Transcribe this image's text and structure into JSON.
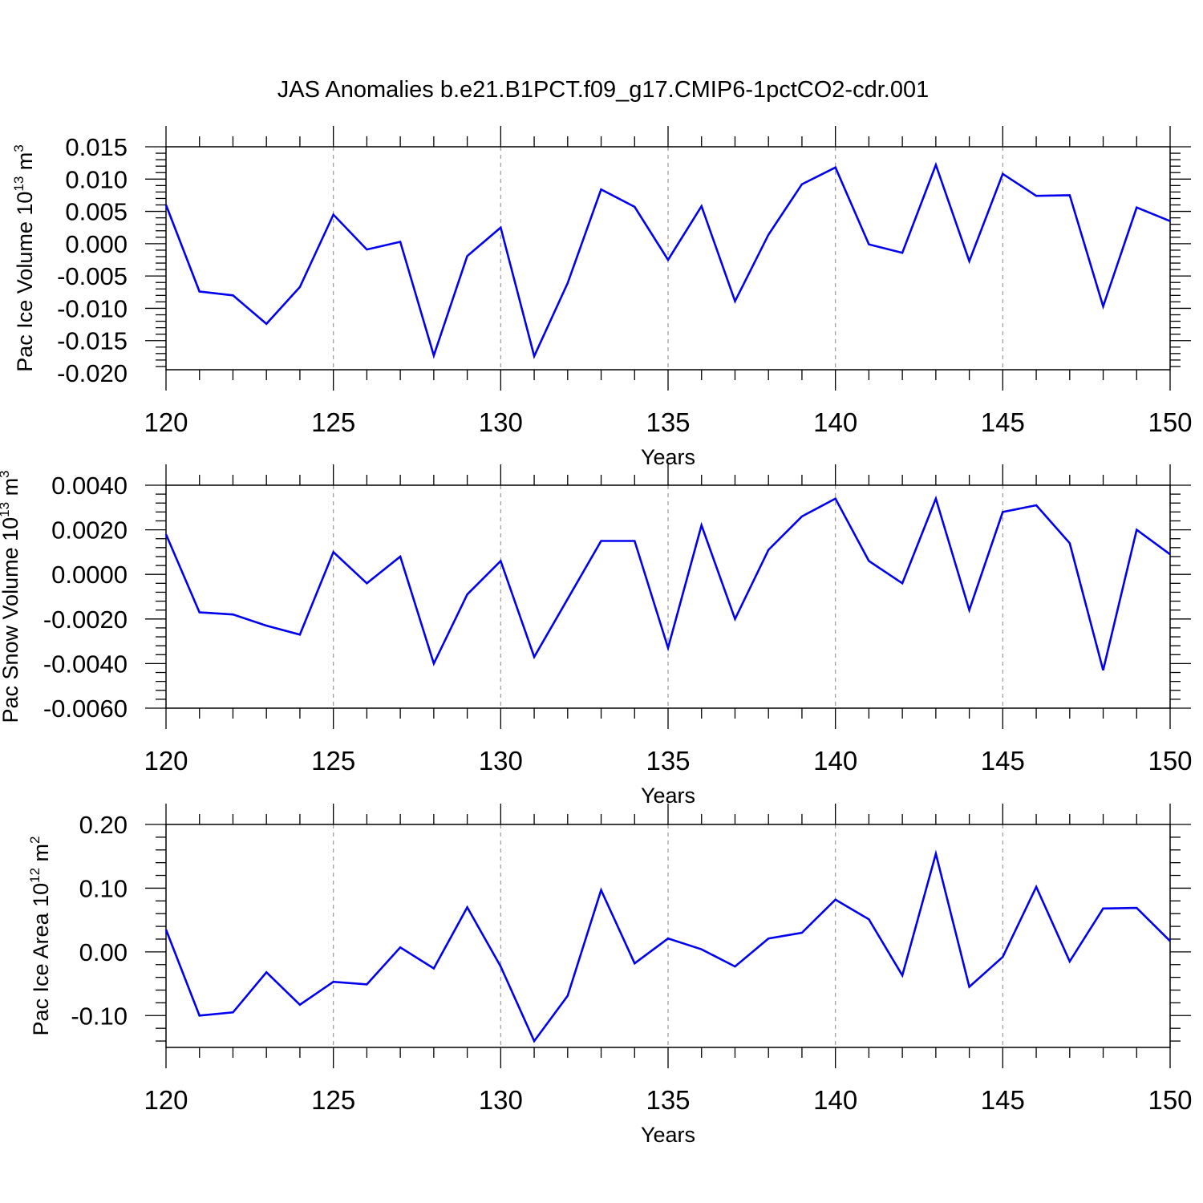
{
  "title": "JAS Anomalies b.e21.B1PCT.f09_g17.CMIP6-1pctCO2-cdr.001",
  "line_color": "#0000ee",
  "chart_data": [
    {
      "type": "line",
      "ylabel": {
        "text": "Pac Ice Volume 10",
        "exp": "13",
        "unit": " m",
        "unit_exp": "3"
      },
      "xlabel": "Years",
      "xlim": [
        120,
        150
      ],
      "ylim": [
        -0.0195,
        0.015
      ],
      "xticks": [
        120,
        125,
        130,
        135,
        140,
        145,
        150
      ],
      "xtick_labels": [
        "120",
        "125",
        "130",
        "135",
        "140",
        "145",
        "150"
      ],
      "yticks": [
        -0.02,
        -0.015,
        -0.01,
        -0.005,
        0.0,
        0.005,
        0.01,
        0.015
      ],
      "ytick_labels": [
        "-0.020",
        "-0.015",
        "-0.010",
        "-0.005",
        "0.000",
        "0.005",
        "0.010",
        "0.015"
      ],
      "grid_x": true,
      "x": [
        120,
        121,
        122,
        123,
        124,
        125,
        126,
        127,
        128,
        129,
        130,
        131,
        132,
        133,
        134,
        135,
        136,
        137,
        138,
        139,
        140,
        141,
        142,
        143,
        144,
        145,
        146,
        147,
        148,
        149,
        150
      ],
      "values": [
        0.006,
        -0.0074,
        -0.008,
        -0.0124,
        -0.0067,
        0.0045,
        -0.0009,
        0.0003,
        -0.0173,
        -0.0019,
        0.0025,
        -0.0174,
        -0.0061,
        0.0084,
        0.0057,
        -0.0025,
        0.0058,
        -0.0089,
        0.0014,
        0.0092,
        0.0118,
        -0.0001,
        -0.0014,
        0.0122,
        -0.0027,
        0.0108,
        0.0074,
        0.0075,
        -0.0097,
        0.0056,
        0.0035
      ]
    },
    {
      "type": "line",
      "ylabel": {
        "text": "Pac Snow Volume 10",
        "exp": "13",
        "unit": " m",
        "unit_exp": "3"
      },
      "xlabel": "Years",
      "xlim": [
        120,
        150
      ],
      "ylim": [
        -0.006,
        0.004
      ],
      "xticks": [
        120,
        125,
        130,
        135,
        140,
        145,
        150
      ],
      "xtick_labels": [
        "120",
        "125",
        "130",
        "135",
        "140",
        "145",
        "150"
      ],
      "yticks": [
        -0.006,
        -0.004,
        -0.002,
        0.0,
        0.002,
        0.004
      ],
      "ytick_labels": [
        "-0.0060",
        "-0.0040",
        "-0.0020",
        "0.0000",
        "0.0020",
        "0.0040"
      ],
      "grid_x": true,
      "x": [
        120,
        121,
        122,
        123,
        124,
        125,
        126,
        127,
        128,
        129,
        130,
        131,
        132,
        133,
        134,
        135,
        136,
        137,
        138,
        139,
        140,
        141,
        142,
        143,
        144,
        145,
        146,
        147,
        148,
        149,
        150
      ],
      "values": [
        0.0018,
        -0.0017,
        -0.0018,
        -0.0023,
        -0.0027,
        0.001,
        -0.0004,
        0.0008,
        -0.004,
        -0.0009,
        0.0006,
        -0.0037,
        -0.0011,
        0.0015,
        0.0015,
        -0.0033,
        0.0022,
        -0.002,
        0.0011,
        0.0026,
        0.0034,
        0.0006,
        -0.0004,
        0.0034,
        -0.0016,
        0.0028,
        0.0031,
        0.0014,
        -0.0043,
        0.002,
        0.0009
      ]
    },
    {
      "type": "line",
      "ylabel": {
        "text": "Pac Ice Area 10",
        "exp": "12",
        "unit": " m",
        "unit_exp": "2"
      },
      "xlabel": "Years",
      "xlim": [
        120,
        150
      ],
      "ylim": [
        -0.15,
        0.2
      ],
      "xticks": [
        120,
        125,
        130,
        135,
        140,
        145,
        150
      ],
      "xtick_labels": [
        "120",
        "125",
        "130",
        "135",
        "140",
        "145",
        "150"
      ],
      "yticks": [
        -0.1,
        0.0,
        0.1,
        0.2
      ],
      "ytick_labels": [
        "-0.10",
        "0.00",
        "0.10",
        "0.20"
      ],
      "grid_x": true,
      "x": [
        120,
        121,
        122,
        123,
        124,
        125,
        126,
        127,
        128,
        129,
        130,
        131,
        132,
        133,
        134,
        135,
        136,
        137,
        138,
        139,
        140,
        141,
        142,
        143,
        144,
        145,
        146,
        147,
        148,
        149,
        150
      ],
      "values": [
        0.035,
        -0.1,
        -0.095,
        -0.032,
        -0.083,
        -0.047,
        -0.051,
        0.007,
        -0.026,
        0.07,
        -0.023,
        -0.14,
        -0.069,
        0.097,
        -0.018,
        0.021,
        0.004,
        -0.023,
        0.021,
        0.03,
        0.082,
        0.051,
        -0.037,
        0.154,
        -0.055,
        -0.008,
        0.102,
        -0.015,
        0.068,
        0.069,
        0.017
      ]
    }
  ]
}
